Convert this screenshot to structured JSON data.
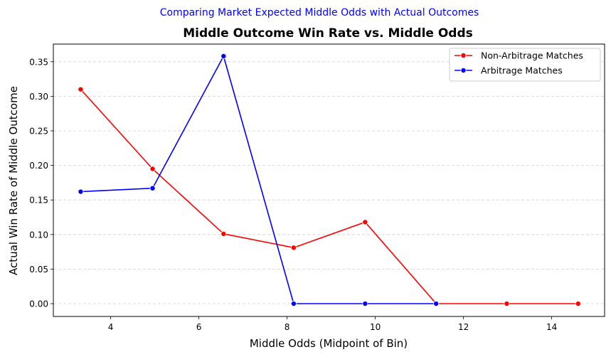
{
  "suptitle": "Comparing Market Expected Middle Odds with Actual Outcomes",
  "chart_data": {
    "type": "line",
    "title": "Middle Outcome Win Rate vs. Middle Odds",
    "xlabel": "Middle Odds (Midpoint of Bin)",
    "ylabel": "Actual Win Rate of Middle Outcome",
    "xlim": [
      2.7,
      15.2
    ],
    "ylim": [
      -0.0185,
      0.3755
    ],
    "xticks": [
      4,
      6,
      8,
      10,
      12,
      14
    ],
    "yticks": [
      0.0,
      0.05,
      0.1,
      0.15,
      0.2,
      0.25,
      0.3,
      0.35
    ],
    "xtick_labels": [
      "4",
      "6",
      "8",
      "10",
      "12",
      "14"
    ],
    "ytick_labels": [
      "0.00",
      "0.05",
      "0.10",
      "0.15",
      "0.20",
      "0.25",
      "0.30",
      "0.35"
    ],
    "grid": "y-dashed",
    "legend_position": "top-right",
    "series": [
      {
        "name": "Non-Arbitrage Matches",
        "color": "#ff0000",
        "x": [
          3.32,
          4.95,
          6.56,
          8.15,
          9.77,
          11.38,
          12.98,
          14.6
        ],
        "y": [
          0.31,
          0.195,
          0.101,
          0.081,
          0.118,
          0.0,
          0.0,
          0.0
        ]
      },
      {
        "name": "Arbitrage Matches",
        "color": "#0000ff",
        "x": [
          3.32,
          4.95,
          6.56,
          8.15,
          9.77,
          11.38
        ],
        "y": [
          0.162,
          0.167,
          0.358,
          0.0,
          0.0,
          0.0
        ]
      }
    ]
  }
}
